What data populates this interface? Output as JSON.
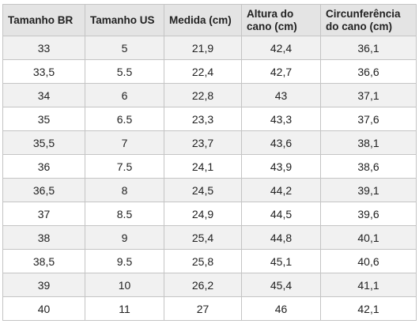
{
  "table": {
    "header": [
      "Tamanho BR",
      "Tamanho US",
      "Medida (cm)",
      "Altura do cano (cm)",
      "Circunferência do cano (cm)"
    ],
    "rows": [
      [
        "33",
        "5",
        "21,9",
        "42,4",
        "36,1"
      ],
      [
        "33,5",
        "5.5",
        "22,4",
        "42,7",
        "36,6"
      ],
      [
        "34",
        "6",
        "22,8",
        "43",
        "37,1"
      ],
      [
        "35",
        "6.5",
        "23,3",
        "43,3",
        "37,6"
      ],
      [
        "35,5",
        "7",
        "23,7",
        "43,6",
        "38,1"
      ],
      [
        "36",
        "7.5",
        "24,1",
        "43,9",
        "38,6"
      ],
      [
        "36,5",
        "8",
        "24,5",
        "44,2",
        "39,1"
      ],
      [
        "37",
        "8.5",
        "24,9",
        "44,5",
        "39,6"
      ],
      [
        "38",
        "9",
        "25,4",
        "44,8",
        "40,1"
      ],
      [
        "38,5",
        "9.5",
        "25,8",
        "45,1",
        "40,6"
      ],
      [
        "39",
        "10",
        "26,2",
        "45,4",
        "41,1"
      ],
      [
        "40",
        "11",
        "27",
        "46",
        "42,1"
      ]
    ]
  }
}
